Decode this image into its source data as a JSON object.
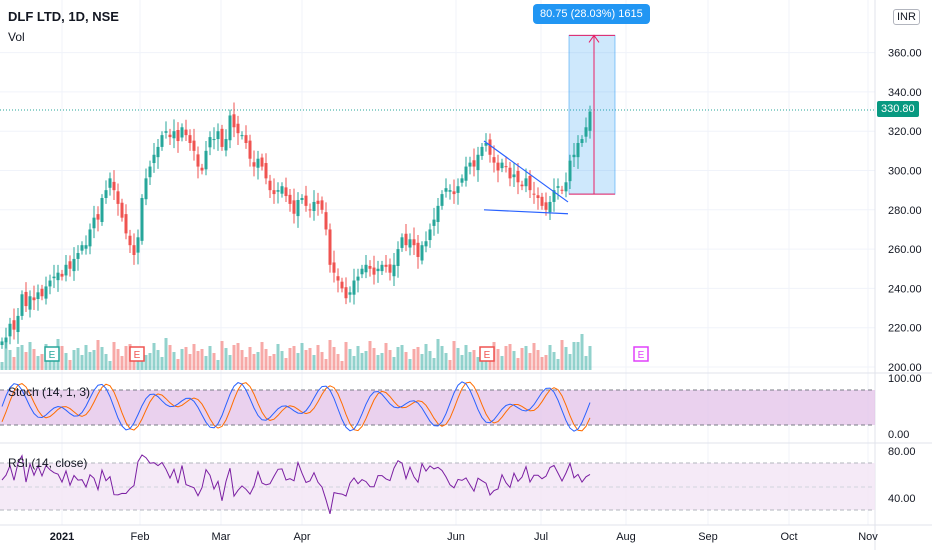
{
  "header": {
    "title": "DLF LTD, 1D, NSE",
    "volume_label": "Vol",
    "currency": "INR"
  },
  "measure_tooltip": "80.75 (28.03%) 1615",
  "last_price_label": "330.80",
  "indicators": {
    "stoch_label": "Stoch (14, 1, 3)",
    "rsi_label": "RSI (14, close)"
  },
  "colors": {
    "up": "#26a69a",
    "down": "#ef5350",
    "measure": "#2196f3",
    "measure_arrow": "#e91e63",
    "stoch_k": "#2962ff",
    "stoch_d": "#ff6d00",
    "stoch_band": "#e1bee7",
    "rsi_line": "#7b1fa2",
    "rsi_band": "#f3e5f5",
    "earnings_past": "#ef5350",
    "earnings_next": "#e040fb",
    "trendline": "#2962ff"
  },
  "chart_data": [
    {
      "type": "candlestick",
      "title": "DLF LTD, 1D, NSE",
      "ylim": [
        195,
        380
      ],
      "y_ticks": [
        "200.00",
        "220.00",
        "240.00",
        "260.00",
        "280.00",
        "300.00",
        "320.00",
        "340.00",
        "360.00"
      ],
      "x_ticks": [
        "2021",
        "Feb",
        "Mar",
        "Apr",
        "Jun",
        "Jul",
        "Aug",
        "Sep",
        "Oct",
        "Nov"
      ],
      "ohlc_close_path": [
        [
          0,
          213
        ],
        [
          4,
          215
        ],
        [
          8,
          222
        ],
        [
          12,
          219
        ],
        [
          16,
          226
        ],
        [
          20,
          237
        ],
        [
          24,
          231
        ],
        [
          28,
          236
        ],
        [
          32,
          234
        ],
        [
          36,
          238
        ],
        [
          40,
          236
        ],
        [
          44,
          241
        ],
        [
          48,
          244
        ],
        [
          52,
          246
        ],
        [
          56,
          248
        ],
        [
          60,
          246
        ],
        [
          64,
          252
        ],
        [
          68,
          250
        ],
        [
          72,
          255
        ],
        [
          76,
          258
        ],
        [
          80,
          262
        ],
        [
          84,
          262
        ],
        [
          88,
          270
        ],
        [
          92,
          276
        ],
        [
          96,
          275
        ],
        [
          100,
          286
        ],
        [
          104,
          290
        ],
        [
          108,
          296
        ],
        [
          112,
          290
        ],
        [
          116,
          283
        ],
        [
          120,
          276
        ],
        [
          124,
          268
        ],
        [
          128,
          262
        ],
        [
          132,
          257
        ],
        [
          136,
          266
        ],
        [
          140,
          286
        ],
        [
          144,
          296
        ],
        [
          148,
          302
        ],
        [
          152,
          308
        ],
        [
          156,
          312
        ],
        [
          160,
          318
        ],
        [
          164,
          320
        ],
        [
          168,
          317
        ],
        [
          172,
          320
        ],
        [
          176,
          315
        ],
        [
          180,
          322
        ],
        [
          184,
          318
        ],
        [
          188,
          314
        ],
        [
          192,
          310
        ],
        [
          196,
          302
        ],
        [
          200,
          300
        ],
        [
          204,
          310
        ],
        [
          208,
          317
        ],
        [
          212,
          316
        ],
        [
          216,
          320
        ],
        [
          220,
          312
        ],
        [
          224,
          316
        ],
        [
          228,
          328
        ],
        [
          232,
          322
        ],
        [
          236,
          319
        ],
        [
          240,
          318
        ],
        [
          244,
          314
        ],
        [
          248,
          306
        ],
        [
          252,
          302
        ],
        [
          256,
          306
        ],
        [
          260,
          302
        ],
        [
          264,
          296
        ],
        [
          268,
          290
        ],
        [
          272,
          288
        ],
        [
          276,
          290
        ],
        [
          280,
          292
        ],
        [
          284,
          287
        ],
        [
          288,
          283
        ],
        [
          292,
          278
        ],
        [
          296,
          285
        ],
        [
          300,
          286
        ],
        [
          304,
          282
        ],
        [
          308,
          280
        ],
        [
          312,
          284
        ],
        [
          316,
          283
        ],
        [
          320,
          280
        ],
        [
          324,
          270
        ],
        [
          328,
          252
        ],
        [
          332,
          248
        ],
        [
          336,
          244
        ],
        [
          340,
          240
        ],
        [
          344,
          235
        ],
        [
          348,
          238
        ],
        [
          352,
          244
        ],
        [
          356,
          246
        ],
        [
          360,
          250
        ],
        [
          364,
          252
        ],
        [
          368,
          250
        ],
        [
          372,
          247
        ],
        [
          376,
          250
        ],
        [
          380,
          252
        ],
        [
          384,
          251
        ],
        [
          388,
          248
        ],
        [
          392,
          252
        ],
        [
          396,
          260
        ],
        [
          400,
          266
        ],
        [
          404,
          262
        ],
        [
          408,
          265
        ],
        [
          412,
          262
        ],
        [
          416,
          256
        ],
        [
          420,
          262
        ],
        [
          424,
          264
        ],
        [
          428,
          270
        ],
        [
          432,
          275
        ],
        [
          436,
          282
        ],
        [
          440,
          288
        ],
        [
          444,
          291
        ],
        [
          448,
          290
        ],
        [
          452,
          288
        ],
        [
          456,
          292
        ],
        [
          460,
          296
        ],
        [
          464,
          302
        ],
        [
          468,
          304
        ],
        [
          472,
          302
        ],
        [
          476,
          308
        ],
        [
          480,
          312
        ],
        [
          484,
          314
        ],
        [
          488,
          308
        ],
        [
          492,
          304
        ],
        [
          496,
          300
        ],
        [
          500,
          304
        ],
        [
          504,
          302
        ],
        [
          508,
          296
        ],
        [
          512,
          298
        ],
        [
          516,
          294
        ],
        [
          520,
          292
        ],
        [
          524,
          296
        ],
        [
          528,
          290
        ],
        [
          532,
          288
        ],
        [
          536,
          286
        ],
        [
          540,
          282
        ],
        [
          544,
          280
        ],
        [
          548,
          284
        ],
        [
          552,
          290
        ],
        [
          556,
          292
        ],
        [
          560,
          290
        ],
        [
          564,
          294
        ],
        [
          568,
          305
        ],
        [
          572,
          308
        ],
        [
          576,
          314
        ],
        [
          580,
          316
        ],
        [
          584,
          322
        ],
        [
          588,
          330
        ]
      ],
      "volume_note": "relative bars",
      "measure_range": {
        "from": 288.0,
        "to": 368.75,
        "change": "80.75 (28.03%) 1615"
      },
      "trendlines": [
        {
          "from": [
            484,
            315
          ],
          "to": [
            568,
            284
          ]
        },
        {
          "from": [
            484,
            280
          ],
          "to": [
            568,
            278
          ]
        }
      ]
    },
    {
      "type": "line",
      "title": "Stoch (14, 1, 3)",
      "y_ticks": [
        "0.00",
        "100.00"
      ],
      "bands": [
        20,
        80
      ]
    },
    {
      "type": "line",
      "title": "RSI (14, close)",
      "y_ticks": [
        "40.00",
        "80.00"
      ],
      "bands": [
        30,
        70
      ]
    }
  ]
}
